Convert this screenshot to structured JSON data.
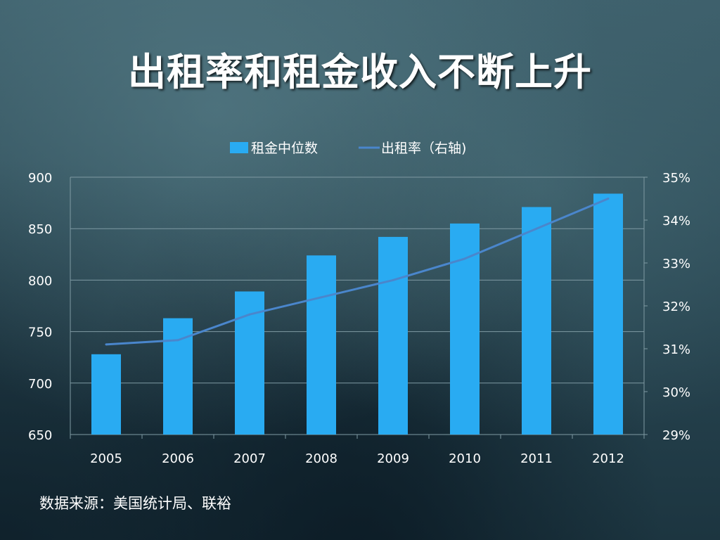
{
  "title": "出租率和租金收入不断上升",
  "source": "数据来源：美国统计局、联裕",
  "colors": {
    "bar": "#29abf2",
    "line": "#4a86cc",
    "grid": "#7f9aa3",
    "text": "#ffffff"
  },
  "chart_data": {
    "type": "bar",
    "categories": [
      "2005",
      "2006",
      "2007",
      "2008",
      "2009",
      "2010",
      "2011",
      "2012"
    ],
    "series": [
      {
        "name": "租金中位数",
        "type": "bar",
        "axis": "left",
        "values": [
          728,
          763,
          789,
          824,
          842,
          855,
          871,
          884
        ]
      },
      {
        "name": "出租率（右轴)",
        "type": "line",
        "axis": "right",
        "values": [
          31.1,
          31.2,
          31.8,
          32.2,
          32.6,
          33.1,
          33.8,
          34.5
        ]
      }
    ],
    "left_axis": {
      "ylim": [
        650,
        900
      ],
      "ticks": [
        "650",
        "700",
        "750",
        "800",
        "850",
        "900"
      ]
    },
    "right_axis": {
      "ylim": [
        29,
        35
      ],
      "ticks": [
        "29%",
        "30%",
        "31%",
        "32%",
        "33%",
        "34%",
        "35%"
      ]
    },
    "grid": true,
    "legend_position": "top"
  }
}
